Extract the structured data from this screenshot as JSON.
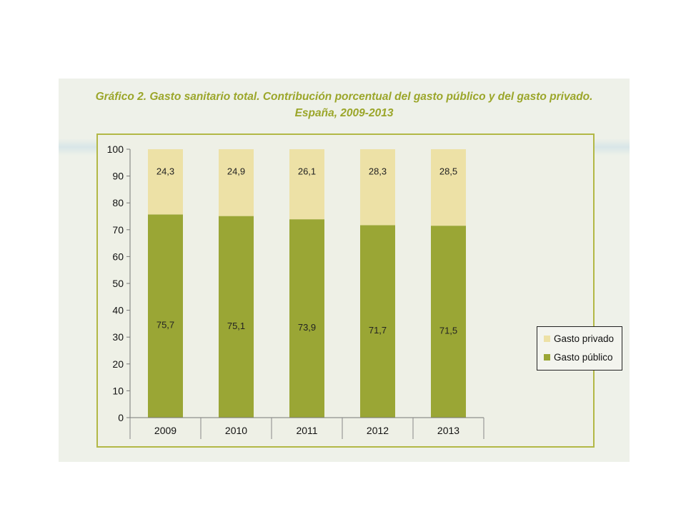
{
  "colors": {
    "publico": "#9aa635",
    "privado": "#ede1a6",
    "title": "#9ba62a",
    "frame": "#b2b846"
  },
  "chart_data": {
    "type": "bar",
    "stacked": true,
    "title": "Gráfico 2. Gasto sanitario total. Contribución porcentual del gasto público y del gasto privado.",
    "subtitle": "España, 2009-2013",
    "categories": [
      "2009",
      "2010",
      "2011",
      "2012",
      "2013"
    ],
    "series": [
      {
        "name": "Gasto público",
        "values": [
          75.7,
          75.1,
          73.9,
          71.7,
          71.5
        ],
        "labels": [
          "75,7",
          "75,1",
          "73,9",
          "71,7",
          "71,5"
        ]
      },
      {
        "name": "Gasto privado",
        "values": [
          24.3,
          24.9,
          26.1,
          28.3,
          28.5
        ],
        "labels": [
          "24,3",
          "24,9",
          "26,1",
          "28,3",
          "28,5"
        ]
      }
    ],
    "y_ticks": [
      "0",
      "10",
      "20",
      "30",
      "40",
      "50",
      "60",
      "70",
      "80",
      "90",
      "100"
    ],
    "ylim": [
      0,
      100
    ],
    "grid": false,
    "legend_position": "right"
  }
}
